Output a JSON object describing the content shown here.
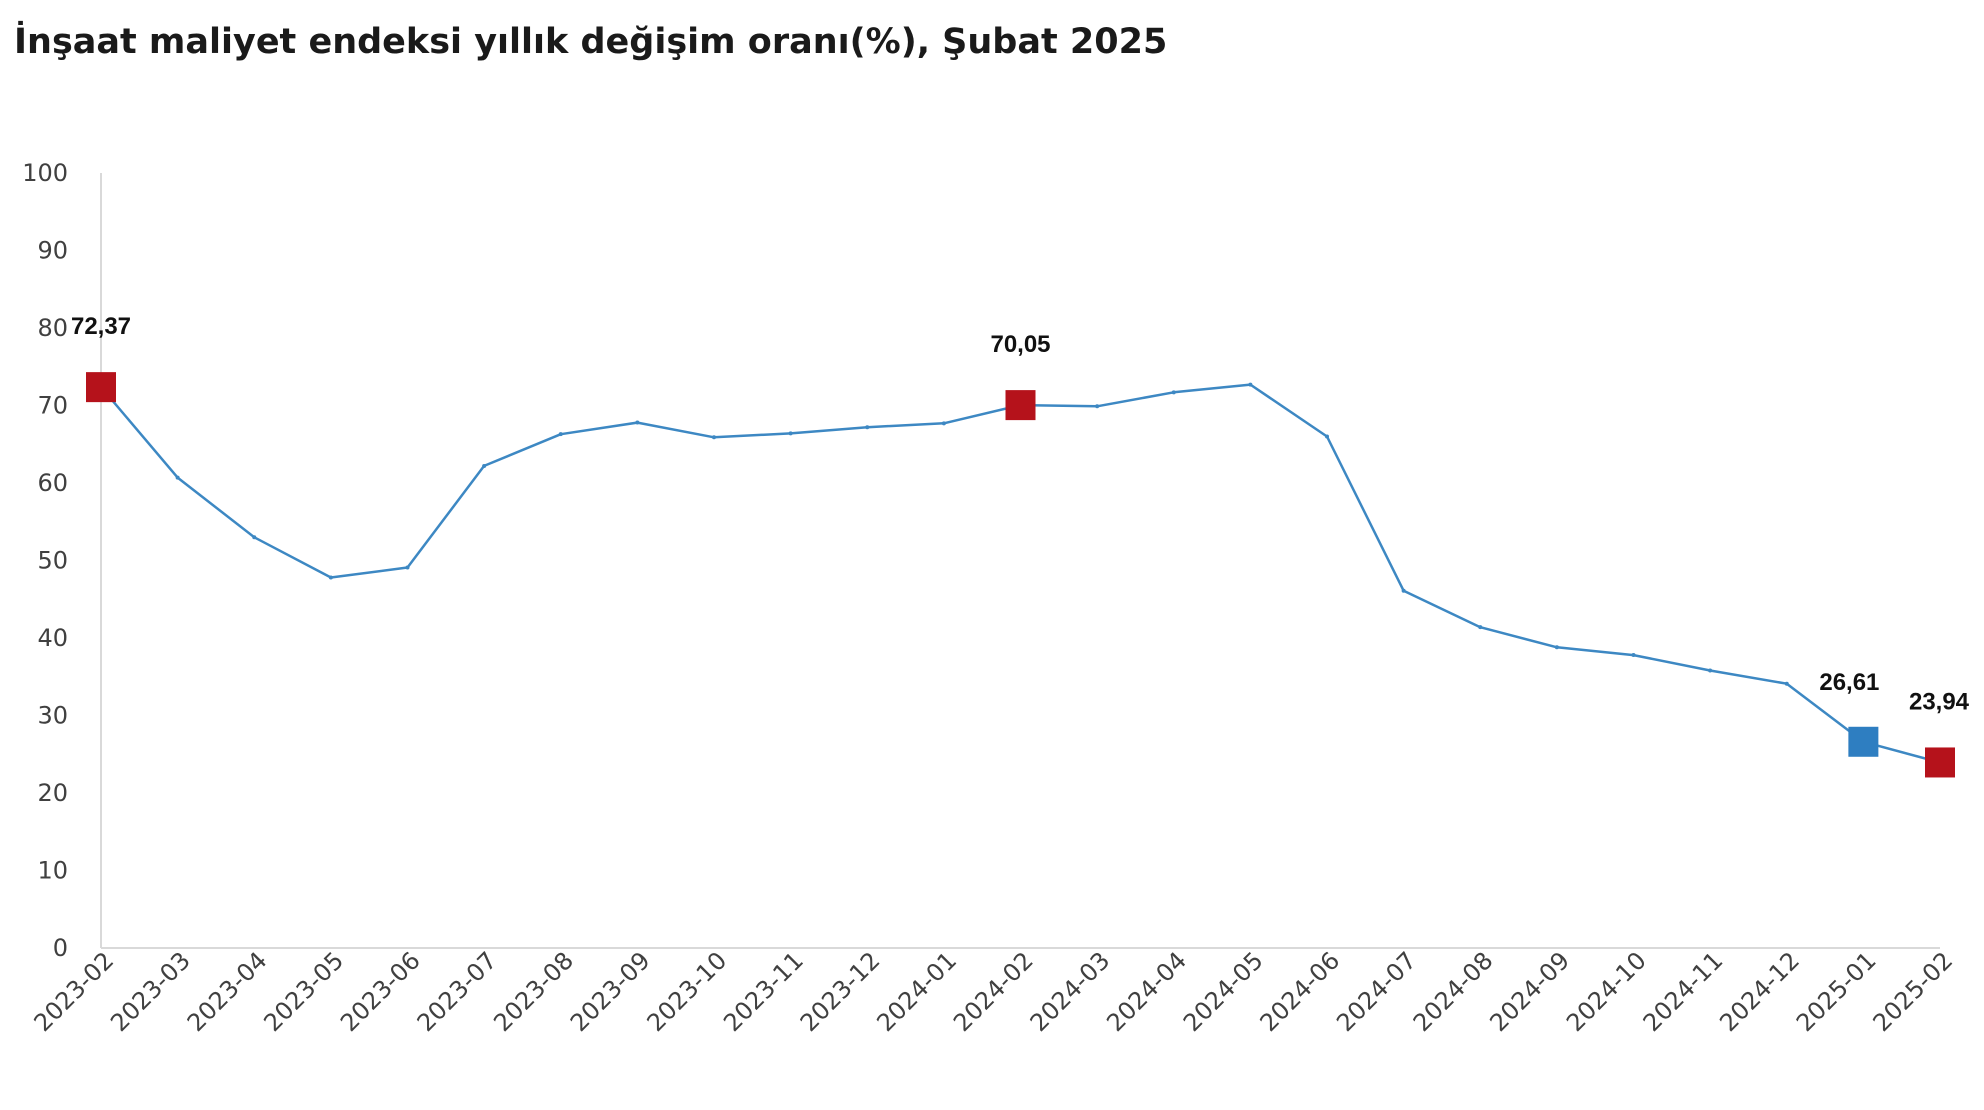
{
  "chart_data": {
    "type": "line",
    "title": "İnşaat maliyet endeksi yıllık değişim oranı(%), Şubat 2025",
    "xlabel": "",
    "ylabel": "",
    "ylim": [
      0,
      100
    ],
    "yticks": [
      "0",
      "10",
      "20",
      "30",
      "40",
      "50",
      "60",
      "70",
      "80",
      "90",
      "100"
    ],
    "grid": false,
    "categories": [
      "2023-02",
      "2023-03",
      "2023-04",
      "2023-05",
      "2023-06",
      "2023-07",
      "2023-08",
      "2023-09",
      "2023-10",
      "2023-11",
      "2023-12",
      "2024-01",
      "2024-02",
      "2024-03",
      "2024-04",
      "2024-05",
      "2024-06",
      "2024-07",
      "2024-08",
      "2024-09",
      "2024-10",
      "2024-11",
      "2024-12",
      "2025-01",
      "2025-02"
    ],
    "series": [
      {
        "values": [
          72.37,
          60.7,
          53.0,
          47.8,
          49.1,
          62.2,
          66.3,
          67.8,
          65.9,
          66.4,
          67.2,
          67.7,
          70.05,
          69.9,
          71.7,
          72.7,
          66.0,
          46.1,
          41.4,
          38.8,
          37.8,
          35.8,
          34.1,
          26.61,
          23.94
        ],
        "color": "#3d88c3"
      }
    ],
    "highlighted_points": [
      {
        "category": "2023-02",
        "value": 72.37,
        "label": "72,37",
        "color": "#b5121b"
      },
      {
        "category": "2024-02",
        "value": 70.05,
        "label": "70,05",
        "color": "#b5121b"
      },
      {
        "category": "2025-01",
        "value": 26.61,
        "label": "26,61",
        "color": "#2e7ec1"
      },
      {
        "category": "2025-02",
        "value": 23.94,
        "label": "23,94",
        "color": "#b5121b"
      }
    ],
    "axis_color": "#d9d9d9"
  }
}
